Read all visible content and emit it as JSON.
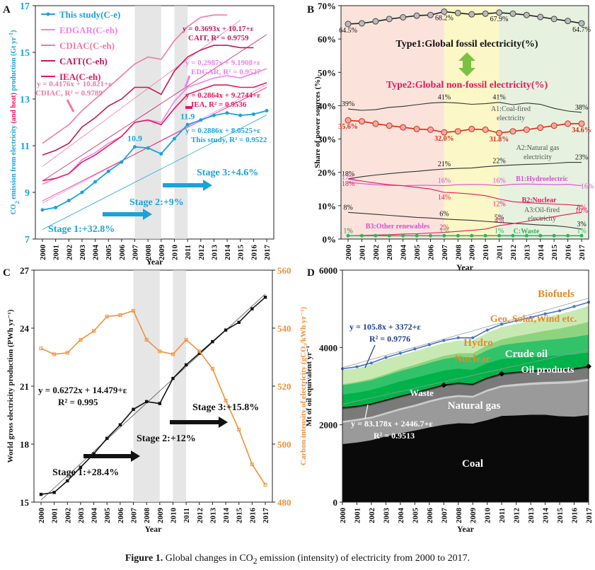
{
  "caption": {
    "label": "Figure 1.",
    "text_a": "Global changes in CO",
    "sub": "2",
    "text_b": " emission (intensity) of electricity from 2000 to 2017."
  },
  "chart_data": [
    {
      "panel": "A",
      "type": "line",
      "xlabel": "Year",
      "ylabel_left_a": "CO",
      "ylabel_left_sub": "2",
      "ylabel_left_b": " emission from electricity ",
      "ylabel_left_c": "(and heat)",
      "ylabel_left_d": " production (Gt yr",
      "ylabel_left_sup": "-1",
      "ylabel_left_e": ")",
      "ylim": [
        7,
        17
      ],
      "yticks": [
        7,
        9,
        11,
        13,
        15,
        17
      ],
      "x": [
        2000,
        2001,
        2002,
        2003,
        2004,
        2005,
        2006,
        2007,
        2008,
        2009,
        2010,
        2011,
        2012,
        2013,
        2014,
        2015,
        2016,
        2017
      ],
      "shade": [
        [
          2007,
          2009
        ],
        [
          2010,
          2011
        ]
      ],
      "series": [
        {
          "name": "This study(C-e)",
          "color": "#1aa3d9",
          "marker": true,
          "values": [
            8.25,
            8.35,
            8.65,
            9.0,
            9.45,
            9.9,
            10.3,
            10.95,
            10.9,
            10.65,
            11.3,
            11.9,
            12.1,
            12.3,
            12.4,
            12.3,
            12.35,
            12.5
          ]
        },
        {
          "name": "EDGAR(C-eh)",
          "color": "#ee82ee",
          "values": [
            9.35,
            9.6,
            9.8,
            10.4,
            10.7,
            11.1,
            11.4,
            12.0,
            12.1,
            12.0,
            12.9,
            13.5,
            13.7,
            13.9,
            14.0,
            13.9,
            14.1,
            14.3
          ]
        },
        {
          "name": "CDIAC(C-eh)",
          "color": "#f07aa0",
          "values": [
            11.1,
            11.5,
            11.9,
            12.5,
            13.0,
            13.5,
            14.0,
            14.5,
            14.8,
            14.7,
            15.5,
            16.1,
            16.5,
            16.6,
            16.6,
            null,
            null,
            null
          ]
        },
        {
          "name": "CAIT(C-eh)",
          "color": "#c2185b",
          "values": [
            10.6,
            10.8,
            11.1,
            11.8,
            12.2,
            12.7,
            13.0,
            13.5,
            13.5,
            13.2,
            14.2,
            14.8,
            15.1,
            15.3,
            15.3,
            15.2,
            15.2,
            null
          ]
        },
        {
          "name": "IEA(C-eh)",
          "color": "#e8175d",
          "values": [
            9.5,
            9.6,
            9.8,
            10.3,
            10.6,
            11.0,
            11.4,
            12.0,
            12.1,
            11.9,
            12.6,
            13.2,
            13.4,
            13.6,
            13.6,
            13.5,
            13.5,
            13.7
          ]
        }
      ],
      "equations": [
        {
          "l1": "y = 0.3693x + 10.17+ε",
          "l2": "CAIT, R² = 0.9759",
          "color": "#c2185b"
        },
        {
          "l1": "y = 0.2987x + 9.1908+ε",
          "l2": "EDGAR, R² = 0.9527",
          "color": "#ee82ee"
        },
        {
          "l1": "y = 0.4176x + 10.821+ε",
          "l2": "CDIAC, R² = 0.9789",
          "color": "#f07aa0"
        },
        {
          "l1": "y = 0.2864x + 9.2744+ε",
          "l2": "IEA, R² = 0.9536",
          "color": "#e8175d"
        },
        {
          "l1": "y = 0.2886x + 8.0525+ε",
          "l2": "This study, R² = 0.9522",
          "color": "#1aa3d9"
        }
      ],
      "point_labels": [
        {
          "x": 2007,
          "text": "10.9"
        },
        {
          "x": 2011,
          "text": "11.9"
        }
      ],
      "stages": [
        "Stage 1:+32.8%",
        "Stage 2:+9%",
        "Stage 3:+4.6%"
      ]
    },
    {
      "panel": "B",
      "type": "line",
      "xlabel": "Year",
      "ylabel": "Share of power sources (%)",
      "ylim": [
        0,
        70
      ],
      "yticks": [
        0,
        10,
        20,
        30,
        40,
        50,
        60,
        70
      ],
      "ytick_suffix": "%",
      "x": [
        2000,
        2001,
        2002,
        2003,
        2004,
        2005,
        2006,
        2007,
        2008,
        2009,
        2010,
        2011,
        2012,
        2013,
        2014,
        2015,
        2016,
        2017
      ],
      "regions": [
        {
          "from": 2000,
          "to": 2007,
          "color": "#fbe3dc"
        },
        {
          "from": 2007,
          "to": 2011,
          "color": "#fbf7c6"
        },
        {
          "from": 2011,
          "to": 2017,
          "color": "#e6f2df"
        }
      ],
      "type1_label": "Type1:Global fossil electricity(%)",
      "type2_label": "Type2:Global non-fossil electricity(%)",
      "series": [
        {
          "name": "Fossil",
          "color": "#222",
          "marker": "gray",
          "values": [
            64.5,
            64.7,
            65.3,
            66.0,
            66.5,
            67.0,
            67.2,
            68.2,
            67.8,
            67.4,
            67.6,
            67.9,
            67.6,
            67.2,
            66.6,
            66.0,
            65.4,
            64.7
          ],
          "labels": [
            {
              "x": 2000,
              "t": "64.5%"
            },
            {
              "x": 2007,
              "t": "68.2%"
            },
            {
              "x": 2011,
              "t": "67.9%"
            },
            {
              "x": 2017,
              "t": "64.7%"
            }
          ]
        },
        {
          "name": "Non-fossil",
          "color": "#d62c1a",
          "marker": "red",
          "values": [
            35.6,
            35.3,
            34.6,
            34.0,
            33.5,
            33.0,
            32.8,
            32.0,
            32.3,
            33.0,
            32.8,
            31.8,
            32.3,
            32.8,
            33.4,
            34.0,
            34.6,
            34.6
          ],
          "labels": [
            {
              "x": 2000,
              "t": "35.6%"
            },
            {
              "x": 2007,
              "t": "32.0%"
            },
            {
              "x": 2011,
              "t": "31.8%"
            },
            {
              "x": 2017,
              "t": "34.6%"
            }
          ]
        },
        {
          "name": "A1:Coal-fired electricity",
          "color": "#333",
          "values": [
            39,
            38.6,
            38.8,
            39.5,
            39.8,
            40.3,
            40.8,
            41,
            40.8,
            40.4,
            40.6,
            41,
            40.3,
            40.8,
            40.4,
            39.2,
            38.4,
            38
          ],
          "labels": [
            {
              "x": 2000,
              "t": "39%"
            },
            {
              "x": 2007,
              "t": "41%"
            },
            {
              "x": 2011,
              "t": "41%"
            },
            {
              "x": 2017,
              "t": "38%"
            }
          ]
        },
        {
          "name": "A2:Natural gas electricity",
          "color": "#333",
          "values": [
            18,
            18.7,
            19.2,
            19.6,
            20.0,
            20.3,
            20.7,
            21,
            21.2,
            21.3,
            21.7,
            22,
            22.2,
            22.4,
            22.5,
            22.7,
            23.0,
            23
          ],
          "labels": [
            {
              "x": 2000,
              "t": "18%"
            },
            {
              "x": 2007,
              "t": "21%"
            },
            {
              "x": 2011,
              "t": "22%"
            },
            {
              "x": 2017,
              "t": "23%"
            }
          ]
        },
        {
          "name": "B1:Hydroelectric",
          "color": "#d94fd0",
          "values": [
            17,
            16.6,
            16.3,
            16.1,
            16.0,
            16.1,
            16.1,
            16,
            16.3,
            16.4,
            16.3,
            16,
            16.4,
            16.5,
            16.4,
            16.3,
            16.4,
            16
          ],
          "labels": [
            {
              "x": 2000,
              "t": "17%"
            },
            {
              "x": 2007,
              "t": "16%"
            },
            {
              "x": 2011,
              "t": "16%"
            },
            {
              "x": 2017,
              "t": "16%"
            }
          ]
        },
        {
          "name": "B2:Nuclear",
          "color": "#e8175d",
          "values": [
            18,
            17.4,
            16.8,
            16.3,
            16.0,
            15.5,
            15.0,
            14,
            13.8,
            13.5,
            13.0,
            12,
            11.2,
            10.9,
            10.7,
            10.5,
            10.3,
            10
          ],
          "labels": [
            {
              "x": 2000,
              "t": "18%"
            },
            {
              "x": 2007,
              "t": "14%"
            },
            {
              "x": 2011,
              "t": "12%"
            },
            {
              "x": 2017,
              "t": "10%"
            }
          ]
        },
        {
          "name": "A3:Oil-fired electricity",
          "color": "#333",
          "values": [
            8,
            7.7,
            7.4,
            7.1,
            6.8,
            6.5,
            6.3,
            6,
            5.8,
            5.6,
            5.3,
            5,
            4.7,
            4.5,
            4.2,
            4.0,
            3.6,
            3
          ],
          "labels": [
            {
              "x": 2000,
              "t": "8%"
            },
            {
              "x": 2007,
              "t": "6%"
            },
            {
              "x": 2011,
              "t": "5%"
            },
            {
              "x": 2017,
              "t": "3%"
            }
          ]
        },
        {
          "name": "B3:Other renewables",
          "color": "#e8175d",
          "values": [
            1,
            1.1,
            1.2,
            1.3,
            1.5,
            1.6,
            1.8,
            2,
            2.3,
            2.6,
            3.0,
            4,
            4.6,
            5.3,
            6.0,
            6.7,
            7.4,
            8
          ],
          "labels": [
            {
              "x": 2000,
              "t": "1%"
            },
            {
              "x": 2007,
              "t": "2%"
            },
            {
              "x": 2011,
              "t": "4%"
            },
            {
              "x": 2017,
              "t": "8%"
            }
          ]
        },
        {
          "name": "C:Waste",
          "color": "#2db35d",
          "marker": "green",
          "values": [
            1,
            1,
            1,
            1,
            1,
            1,
            1,
            1,
            1,
            1,
            1,
            1,
            1,
            1,
            1,
            1,
            1,
            1
          ],
          "labels": [
            {
              "x": 2000,
              "t": "1%"
            },
            {
              "x": 2007,
              "t": "1%"
            },
            {
              "x": 2011,
              "t": "1%"
            },
            {
              "x": 2017,
              "t": "1%"
            }
          ]
        }
      ]
    },
    {
      "panel": "C",
      "type": "line",
      "xlabel": "Year",
      "ylabel_left": "World gross electricity production (PWh yr⁻¹)",
      "ylabel_right": "Carbon intensity of electricity (gCO₂/kWh yr⁻¹)",
      "ylim_left": [
        15,
        27
      ],
      "yticks_left": [
        15,
        18,
        21,
        24,
        27
      ],
      "ylim_right": [
        480,
        560
      ],
      "yticks_right": [
        480,
        500,
        520,
        540,
        560
      ],
      "x": [
        2000,
        2001,
        2002,
        2003,
        2004,
        2005,
        2006,
        2007,
        2008,
        2009,
        2010,
        2011,
        2012,
        2013,
        2014,
        2015,
        2016,
        2017
      ],
      "shade": [
        [
          2007,
          2009
        ],
        [
          2010,
          2011
        ]
      ],
      "series": [
        {
          "name": "Electricity production",
          "axis": "left",
          "color": "#111",
          "values": [
            15.4,
            15.5,
            16.1,
            16.8,
            17.5,
            18.3,
            19.0,
            19.8,
            20.2,
            20.1,
            21.4,
            22.1,
            22.7,
            23.3,
            23.9,
            24.3,
            25.0,
            25.6
          ]
        },
        {
          "name": "Carbon intensity",
          "axis": "right",
          "color": "#f0913a",
          "values": [
            533,
            531,
            531.5,
            536,
            539,
            544,
            544.5,
            546,
            536,
            532,
            531,
            536,
            532,
            526,
            515,
            505,
            493,
            486
          ]
        }
      ],
      "equation": {
        "l1": "y = 0.6272x + 14.479+ε",
        "l2": "R² = 0.995"
      },
      "stages": [
        "Stage 1:+28.4%",
        "Stage 2:+12%",
        "Stage 3:+15.8%"
      ]
    },
    {
      "panel": "D",
      "type": "area",
      "xlabel": "Year",
      "ylabel": "Mt of oil equivalent yr⁻¹",
      "ylim": [
        0,
        6000
      ],
      "yticks": [
        0,
        2000,
        4000,
        6000
      ],
      "x": [
        2000,
        2001,
        2002,
        2003,
        2004,
        2005,
        2006,
        2007,
        2008,
        2009,
        2010,
        2011,
        2012,
        2013,
        2014,
        2015,
        2016,
        2017
      ],
      "layers": [
        {
          "name": "Coal",
          "color": "#0a0a0a",
          "top": [
            1500,
            1540,
            1600,
            1700,
            1780,
            1850,
            1930,
            2000,
            2040,
            2030,
            2120,
            2230,
            2240,
            2260,
            2260,
            2220,
            2210,
            2250
          ]
        },
        {
          "name": "Natural gas",
          "color": "#9a9a9a",
          "top": [
            2050,
            2100,
            2160,
            2270,
            2380,
            2470,
            2580,
            2670,
            2720,
            2700,
            2860,
            2970,
            3000,
            3030,
            3050,
            3060,
            3080,
            3130
          ]
        },
        {
          "name": "Waste",
          "color": "#cccccc",
          "top": [
            2100,
            2150,
            2210,
            2320,
            2430,
            2520,
            2630,
            2720,
            2770,
            2750,
            2910,
            3020,
            3060,
            3090,
            3110,
            3120,
            3140,
            3190
          ]
        },
        {
          "name": "Oil products",
          "color": "#7a7a7a",
          "top": [
            2400,
            2440,
            2500,
            2600,
            2700,
            2790,
            2890,
            2990,
            3040,
            3010,
            3170,
            3280,
            3320,
            3350,
            3370,
            3380,
            3410,
            3470
          ]
        },
        {
          "name": "Crude oil",
          "color": "#4a4a4a",
          "top": [
            2440,
            2480,
            2540,
            2640,
            2740,
            2830,
            2930,
            3030,
            3080,
            3050,
            3210,
            3320,
            3360,
            3390,
            3410,
            3420,
            3450,
            3510
          ]
        },
        {
          "name": "Nuclear",
          "color": "#00b24a",
          "top": [
            2780,
            2830,
            2900,
            3010,
            3120,
            3210,
            3310,
            3400,
            3450,
            3420,
            3590,
            3700,
            3730,
            3750,
            3770,
            3790,
            3820,
            3870
          ]
        },
        {
          "name": "Hydro",
          "color": "#31c26a",
          "top": [
            3020,
            3080,
            3150,
            3270,
            3390,
            3490,
            3600,
            3700,
            3760,
            3740,
            3930,
            4060,
            4110,
            4150,
            4190,
            4220,
            4270,
            4330
          ]
        },
        {
          "name": "Geo, Solar,Wind etc.",
          "color": "#8ed47f",
          "top": [
            3050,
            3110,
            3190,
            3310,
            3440,
            3550,
            3670,
            3780,
            3850,
            3850,
            4060,
            4210,
            4290,
            4360,
            4430,
            4490,
            4570,
            4660
          ]
        },
        {
          "name": "Biofuels",
          "color": "#c9e9b3",
          "top": [
            3420,
            3460,
            3560,
            3700,
            3800,
            3900,
            4010,
            4110,
            4180,
            4180,
            4380,
            4530,
            4610,
            4700,
            4780,
            4860,
            4960,
            5070
          ]
        }
      ],
      "total_line": [
        3450,
        3500,
        3600,
        3740,
        3850,
        3960,
        4070,
        4180,
        4250,
        4250,
        4450,
        4600,
        4690,
        4780,
        4870,
        4950,
        5060,
        5170
      ],
      "equation_top": {
        "l1": "y = 105.8x + 3372+ε",
        "l2": "R² = 0.9776"
      },
      "equation_bottom": {
        "l1": "y = 83.178x + 2446.7+ε",
        "l2": "R² = 0.9513"
      }
    }
  ]
}
